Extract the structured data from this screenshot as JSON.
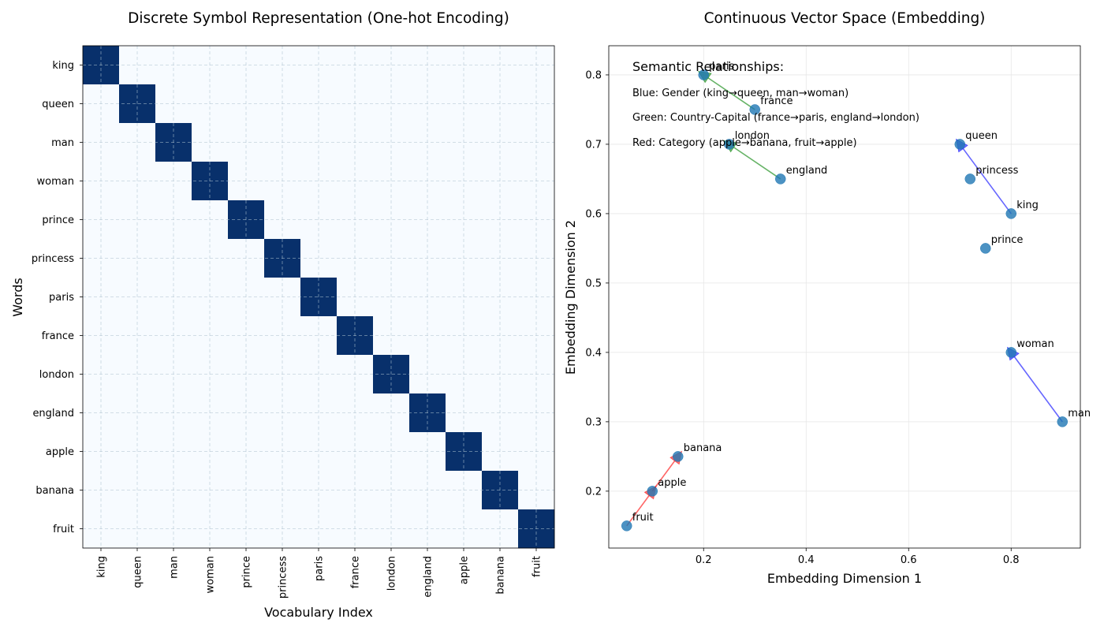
{
  "chart_data": [
    {
      "type": "heatmap",
      "title": "Discrete Symbol Representation (One-hot Encoding)",
      "xlabel": "Vocabulary Index",
      "ylabel": "Words",
      "rows": [
        "king",
        "queen",
        "man",
        "woman",
        "prince",
        "princess",
        "paris",
        "france",
        "london",
        "england",
        "apple",
        "banana",
        "fruit"
      ],
      "columns": [
        "king",
        "queen",
        "man",
        "woman",
        "prince",
        "princess",
        "paris",
        "france",
        "london",
        "england",
        "apple",
        "banana",
        "fruit"
      ],
      "matrix": "identity",
      "values": {
        "hot": 1,
        "cold": 0
      },
      "colors": {
        "hot": "#08306b",
        "cold": "#f7fbff"
      },
      "grid": true
    },
    {
      "type": "scatter",
      "title": "Continuous Vector Space (Embedding)",
      "xlabel": "Embedding Dimension 1",
      "ylabel": "Embedding Dimension 2",
      "xlim": [
        0.015,
        0.935
      ],
      "ylim": [
        0.118,
        0.842
      ],
      "xticks": [
        0.2,
        0.4,
        0.6,
        0.8
      ],
      "yticks": [
        0.2,
        0.3,
        0.4,
        0.5,
        0.6,
        0.7,
        0.8
      ],
      "grid": true,
      "point_color": "#1f77b4",
      "points": [
        {
          "word": "king",
          "x": 0.8,
          "y": 0.6
        },
        {
          "word": "queen",
          "x": 0.7,
          "y": 0.7
        },
        {
          "word": "man",
          "x": 0.9,
          "y": 0.3
        },
        {
          "word": "woman",
          "x": 0.8,
          "y": 0.4
        },
        {
          "word": "prince",
          "x": 0.75,
          "y": 0.55
        },
        {
          "word": "princess",
          "x": 0.72,
          "y": 0.65
        },
        {
          "word": "paris",
          "x": 0.2,
          "y": 0.8
        },
        {
          "word": "france",
          "x": 0.3,
          "y": 0.75
        },
        {
          "word": "london",
          "x": 0.25,
          "y": 0.7
        },
        {
          "word": "england",
          "x": 0.35,
          "y": 0.65
        },
        {
          "word": "apple",
          "x": 0.1,
          "y": 0.2
        },
        {
          "word": "banana",
          "x": 0.15,
          "y": 0.25
        },
        {
          "word": "fruit",
          "x": 0.05,
          "y": 0.15
        }
      ],
      "arrows": [
        {
          "from": "king",
          "to": "queen",
          "color": "#0000ff",
          "relation": "gender"
        },
        {
          "from": "man",
          "to": "woman",
          "color": "#0000ff",
          "relation": "gender"
        },
        {
          "from": "france",
          "to": "paris",
          "color": "#008000",
          "relation": "country-capital"
        },
        {
          "from": "england",
          "to": "london",
          "color": "#008000",
          "relation": "country-capital"
        },
        {
          "from": "apple",
          "to": "banana",
          "color": "#ff0000",
          "relation": "category"
        },
        {
          "from": "fruit",
          "to": "apple",
          "color": "#ff0000",
          "relation": "category"
        }
      ],
      "legend": {
        "heading": "Semantic Relationships:",
        "placement": "top-left",
        "lines": [
          {
            "text": "Blue: Gender (king→queen, man→woman)",
            "color": "#0000ff"
          },
          {
            "text": "Green: Country-Capital (france→paris, england→london)",
            "color": "#008000"
          },
          {
            "text": "Red: Category (apple→banana, fruit→apple)",
            "color": "#ff0000"
          }
        ]
      }
    }
  ]
}
